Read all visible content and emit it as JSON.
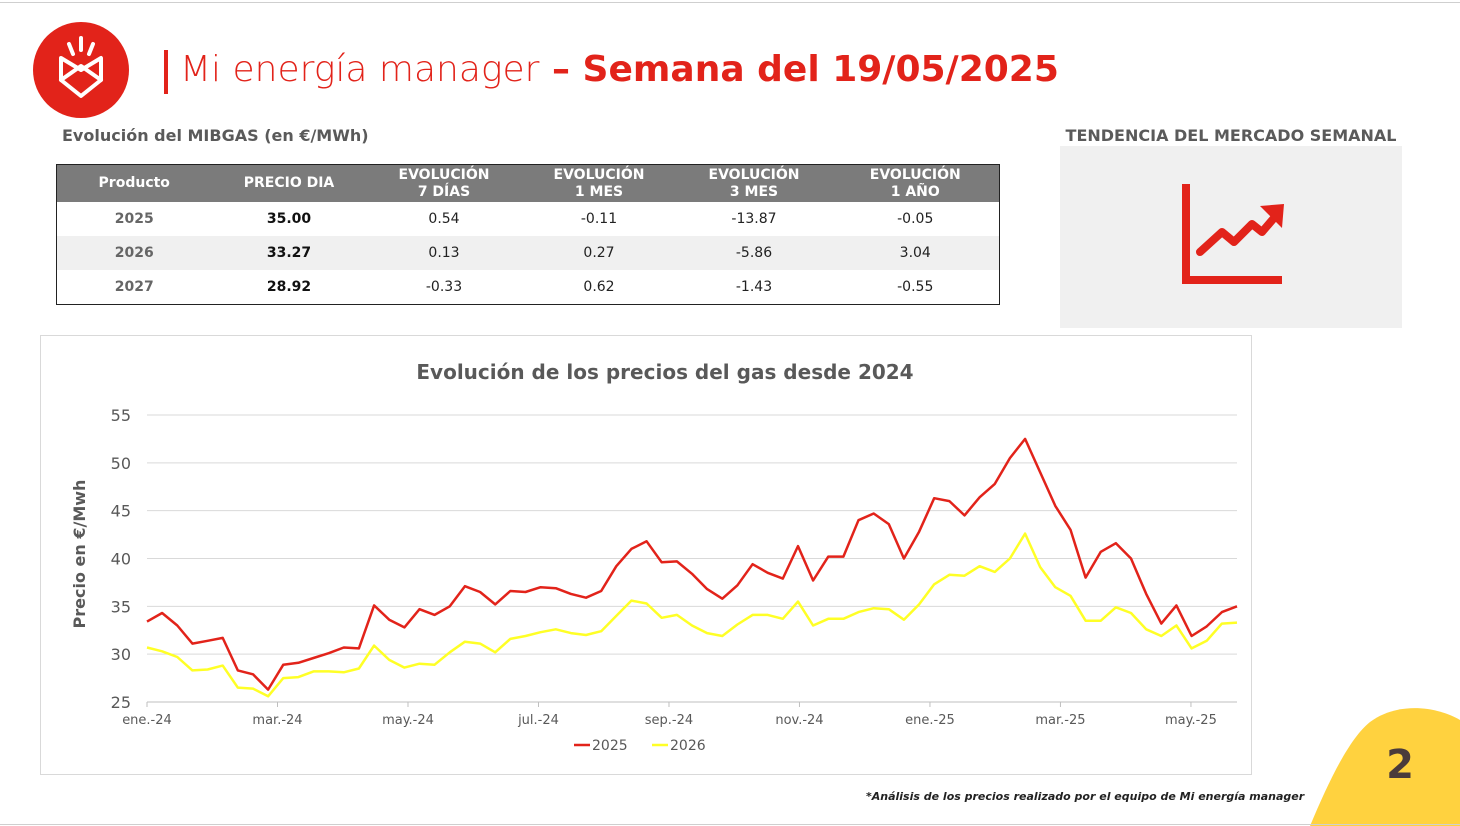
{
  "header": {
    "title_light": "Mi energía manager",
    "title_sep": " – ",
    "title_bold": "Semana del 19/05/2025",
    "logo_icon": "shield-sun-logo-icon"
  },
  "table": {
    "caption": "Evolución del MIBGAS (en €/MWh)",
    "headers": [
      [
        "Producto"
      ],
      [
        "PRECIO DIA"
      ],
      [
        "EVOLUCIÓN",
        "7 DÍAS"
      ],
      [
        "EVOLUCIÓN",
        "1 MES"
      ],
      [
        "EVOLUCIÓN",
        "3 MES"
      ],
      [
        "EVOLUCIÓN",
        "1 AÑO"
      ]
    ],
    "rows": [
      {
        "product": "2025",
        "price": "35.00",
        "d7": "0.54",
        "m1": "-0.11",
        "m3": "-13.87",
        "y1": "-0.05"
      },
      {
        "product": "2026",
        "price": "33.27",
        "d7": "0.13",
        "m1": "0.27",
        "m3": "-5.86",
        "y1": "3.04"
      },
      {
        "product": "2027",
        "price": "28.92",
        "d7": "-0.33",
        "m1": "0.62",
        "m3": "-1.43",
        "y1": "-0.55"
      }
    ]
  },
  "trend": {
    "caption": "TENDENCIA DEL MERCADO SEMANAL",
    "icon": "trend-up-chart-icon",
    "color": "#e2231a"
  },
  "chart_data": {
    "type": "line",
    "title": "Evolución de los precios del gas desde 2024",
    "ylabel": "Precio en €/Mwh",
    "xlabel": "",
    "ylim": [
      25,
      55
    ],
    "yticks": [
      25,
      30,
      35,
      40,
      45,
      50,
      55
    ],
    "xlim": [
      0,
      71
    ],
    "xtick_labels": [
      {
        "label": "ene.-24",
        "x": 0
      },
      {
        "label": "mar.-24",
        "x": 8.5
      },
      {
        "label": "may.-24",
        "x": 17
      },
      {
        "label": "jul.-24",
        "x": 25.5
      },
      {
        "label": "sep.-24",
        "x": 34
      },
      {
        "label": "nov.-24",
        "x": 42.5
      },
      {
        "label": "ene.-25",
        "x": 51
      },
      {
        "label": "mar.-25",
        "x": 59.5
      },
      {
        "label": "may.-25",
        "x": 68
      }
    ],
    "grid": true,
    "legend_position": "bottom-center",
    "series": [
      {
        "name": "2025",
        "color": "#e2231a",
        "values": [
          33.4,
          34.3,
          33.0,
          31.1,
          31.4,
          31.7,
          28.3,
          27.9,
          26.3,
          28.9,
          29.1,
          29.6,
          30.1,
          30.7,
          30.6,
          35.1,
          33.6,
          32.8,
          34.7,
          34.1,
          35.0,
          37.1,
          36.5,
          35.2,
          36.6,
          36.5,
          37.0,
          36.9,
          36.3,
          35.9,
          36.6,
          39.2,
          41.0,
          41.8,
          39.6,
          39.7,
          38.4,
          36.8,
          35.8,
          37.2,
          39.4,
          38.5,
          37.9,
          41.3,
          37.7,
          40.2,
          40.2,
          44.0,
          44.7,
          43.6,
          40.0,
          42.8,
          46.3,
          46.0,
          44.5,
          46.4,
          47.8,
          50.5,
          52.5,
          49.0,
          45.5,
          43.0,
          38.0,
          40.7,
          41.6,
          40.0,
          36.3,
          33.2,
          35.1,
          31.9,
          32.9,
          34.4,
          35.0
        ]
      },
      {
        "name": "2026",
        "color": "#ffff26",
        "values": [
          30.7,
          30.3,
          29.7,
          28.3,
          28.4,
          28.8,
          26.5,
          26.4,
          25.6,
          27.5,
          27.6,
          28.2,
          28.2,
          28.1,
          28.5,
          30.9,
          29.4,
          28.6,
          29.0,
          28.9,
          30.2,
          31.3,
          31.1,
          30.2,
          31.6,
          31.9,
          32.3,
          32.6,
          32.2,
          32.0,
          32.4,
          34.0,
          35.6,
          35.3,
          33.8,
          34.1,
          33.0,
          32.2,
          31.9,
          33.1,
          34.1,
          34.1,
          33.7,
          35.5,
          33.0,
          33.7,
          33.7,
          34.4,
          34.8,
          34.7,
          33.6,
          35.2,
          37.3,
          38.3,
          38.2,
          39.2,
          38.6,
          40.0,
          42.6,
          39.1,
          37.0,
          36.1,
          33.5,
          33.5,
          34.9,
          34.3,
          32.6,
          31.9,
          33.0,
          30.6,
          31.4,
          33.2,
          33.3
        ]
      }
    ]
  },
  "footnote": "*Análisis de los precios realizado por el equipo de Mi energía manager",
  "page": {
    "number": "2",
    "corner_color": "#ffd23f"
  }
}
